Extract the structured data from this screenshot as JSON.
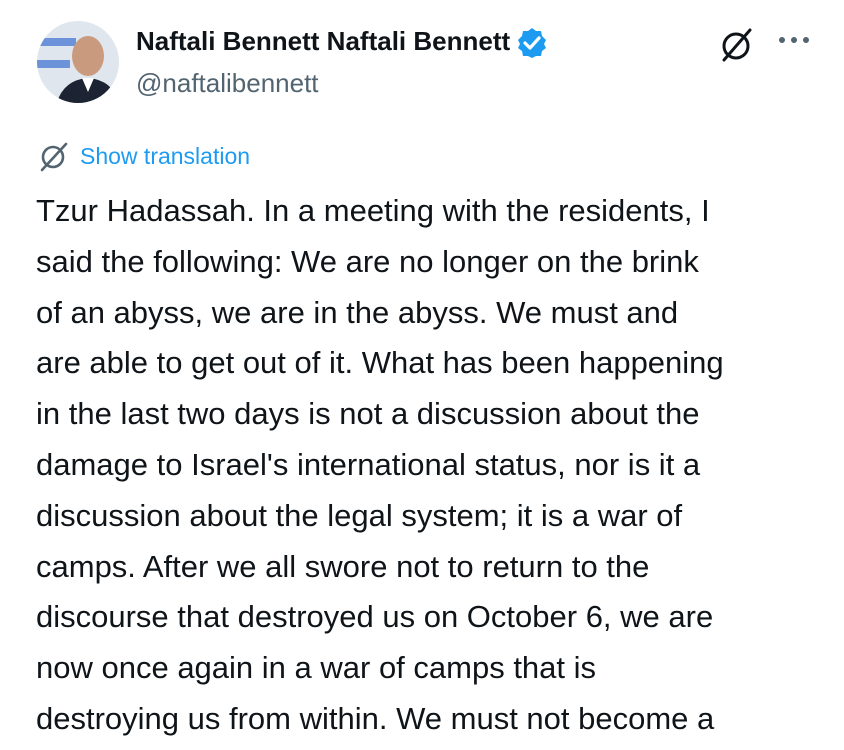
{
  "tweet": {
    "name": "Naftali Bennett Naftali Bennett",
    "handle": "@naftalibennett",
    "show_translation": "Show translation",
    "text_lines": [
      "Tzur Hadassah. In a meeting with the residents, I",
      "said the following: We are no longer on the brink",
      "of an abyss, we are in the abyss. We must and",
      "are able to get out of it. What has been happening",
      "in the last two days is not a discussion about the",
      "damage to Israel's international status, nor is it a",
      "discussion about the legal system; it is a war of",
      "camps. After we all swore not to return to the",
      "discourse that destroyed us on October 6, we are",
      "now once again in a war of camps that is",
      "destroying us from within. We must not become a"
    ]
  }
}
